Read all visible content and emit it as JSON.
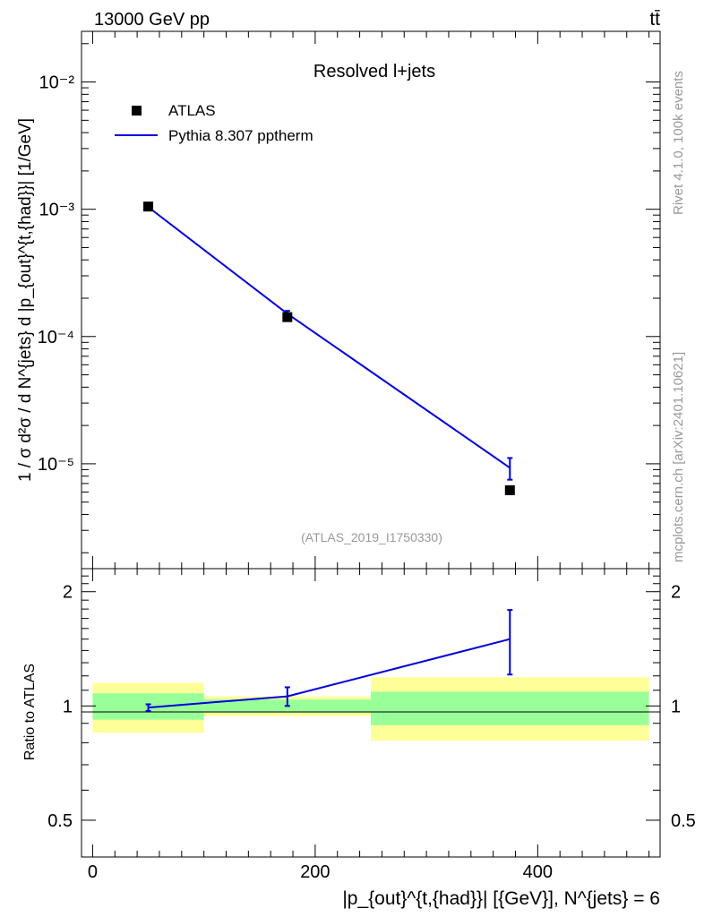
{
  "header": {
    "left_label": "13000 GeV pp",
    "right_label": "tt̄",
    "side_rivet": "Rivet 4.1.0,  100k events",
    "side_mcplots": "mcplots.cern.ch [arXiv:2401.10621]"
  },
  "legend": {
    "data_label": "ATLAS",
    "mc_label": "Pythia 8.307 pptherm"
  },
  "colors": {
    "data": "#000000",
    "mc": "#0000dd",
    "band_inner": "#99ff99",
    "band_outer": "#ffff99",
    "watermark": "#999999"
  },
  "chart_data": [
    {
      "type": "scatter",
      "panel": "main",
      "title": "Resolved l+jets",
      "watermark": "(ATLAS_2019_I1750330)",
      "yscale": "log",
      "ylim": [
        1.5e-06,
        0.025
      ],
      "xlim": [
        -10,
        510
      ],
      "ylabel": "1 / σ d²σ / d N^{jets} d |p_{out}^{t,{had}}| [1/GeV]",
      "ytick_labels": [
        "10⁻²",
        "10⁻³",
        "10⁻⁴",
        "10⁻⁵"
      ],
      "ytick_values": [
        0.01,
        0.001,
        0.0001,
        1e-05
      ],
      "series": [
        {
          "name": "ATLAS",
          "kind": "markers",
          "x": [
            50,
            175,
            375
          ],
          "y": [
            0.00105,
            0.000142,
            6.2e-06
          ],
          "bins": [
            [
              0,
              100
            ],
            [
              100,
              250
            ],
            [
              250,
              500
            ]
          ]
        },
        {
          "name": "Pythia 8.307 pptherm",
          "kind": "line",
          "x": [
            50,
            175,
            375
          ],
          "y": [
            0.00104,
            0.000151,
            9.3e-06
          ],
          "yerr_low": [
            1e-05,
            8e-06,
            1.8e-06
          ],
          "yerr_high": [
            1e-05,
            8e-06,
            1.8e-06
          ]
        }
      ]
    },
    {
      "type": "line",
      "panel": "ratio",
      "ylabel": "Ratio to ATLAS",
      "xlabel": "|p_{out}^{t,{had}}| [{GeV}], N^{jets} = 6",
      "xlim": [
        -10,
        510
      ],
      "ylim": [
        0.4,
        2.3
      ],
      "yscale": "log",
      "xtick_labels": [
        "0",
        "200",
        "400"
      ],
      "xtick_values": [
        0,
        200,
        400
      ],
      "ytick_labels": [
        "2",
        "1",
        "0.5"
      ],
      "ytick_values": [
        2,
        1,
        0.5
      ],
      "bands": [
        {
          "bin": [
            0,
            100
          ],
          "inner": [
            0.92,
            1.08
          ],
          "outer": [
            0.85,
            1.15
          ]
        },
        {
          "bin": [
            100,
            250
          ],
          "inner": [
            0.96,
            1.04
          ],
          "outer": [
            0.94,
            1.06
          ]
        },
        {
          "bin": [
            250,
            500
          ],
          "inner": [
            0.89,
            1.09
          ],
          "outer": [
            0.81,
            1.19
          ]
        }
      ],
      "series": [
        {
          "name": "Pythia 8.307 pptherm / ATLAS",
          "x": [
            50,
            175,
            375
          ],
          "y": [
            0.99,
            1.06,
            1.5
          ],
          "yerr_low": [
            0.02,
            0.06,
            0.29
          ],
          "yerr_high": [
            0.02,
            0.06,
            0.29
          ]
        }
      ]
    }
  ]
}
